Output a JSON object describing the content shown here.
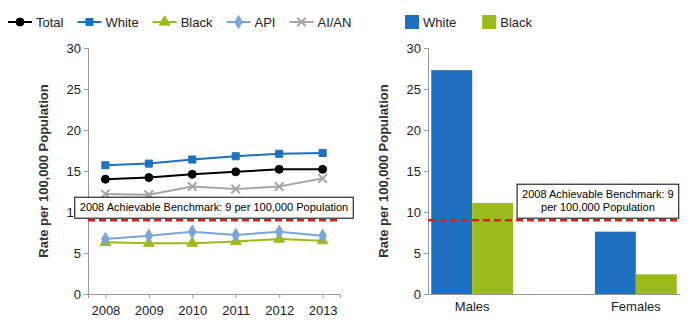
{
  "chart_data": [
    {
      "type": "line",
      "categories": [
        "2008",
        "2009",
        "2010",
        "2011",
        "2012",
        "2013"
      ],
      "series": [
        {
          "name": "Total",
          "color": "#000000",
          "marker": "circle",
          "values": [
            14.0,
            14.2,
            14.6,
            14.9,
            15.2,
            15.2
          ]
        },
        {
          "name": "White",
          "color": "#1f70c1",
          "marker": "square",
          "values": [
            15.7,
            15.9,
            16.4,
            16.8,
            17.1,
            17.2
          ]
        },
        {
          "name": "Black",
          "color": "#9bbb1c",
          "marker": "triangle",
          "values": [
            6.3,
            6.2,
            6.2,
            6.4,
            6.7,
            6.5
          ]
        },
        {
          "name": "API",
          "color": "#7aa6d9",
          "marker": "diamond",
          "values": [
            6.7,
            7.1,
            7.6,
            7.2,
            7.6,
            7.1
          ]
        },
        {
          "name": "AI/AN",
          "color": "#a6a6a6",
          "marker": "x",
          "values": [
            12.2,
            12.1,
            13.1,
            12.8,
            13.1,
            14.1
          ]
        }
      ],
      "ylabel": "Rate per 100,000 Population",
      "ylim": [
        0,
        30
      ],
      "yticks": [
        0,
        5,
        10,
        15,
        20,
        25,
        30
      ],
      "legend": "top",
      "annotations": [
        {
          "text": [
            "2008 Achievable Benchmark: 9 per 100,000 Population"
          ],
          "y": 9,
          "color": "#e31a1c"
        }
      ]
    },
    {
      "type": "bar",
      "categories": [
        "Males",
        "Females"
      ],
      "series": [
        {
          "name": "White",
          "color": "#1f70c1",
          "values": [
            27.3,
            7.6
          ]
        },
        {
          "name": "Black",
          "color": "#9bbb1c",
          "values": [
            11.1,
            2.4
          ]
        }
      ],
      "ylabel": "Rate per 100,000 Population",
      "ylim": [
        0,
        30
      ],
      "yticks": [
        0,
        5,
        10,
        15,
        20,
        25,
        30
      ],
      "legend": "top",
      "annotations": [
        {
          "text": [
            "2008 Achievable Benchmark: 9",
            "per 100,000 Population"
          ],
          "y": 9,
          "color": "#e31a1c"
        }
      ]
    }
  ]
}
